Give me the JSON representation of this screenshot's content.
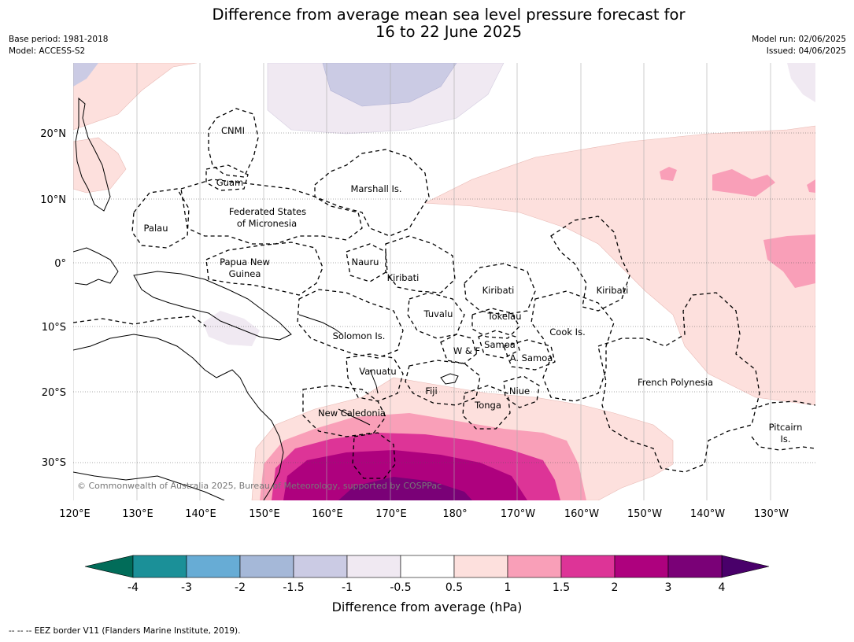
{
  "title": {
    "line1": "Difference from average mean sea level pressure forecast for",
    "line2": "16 to 22 June 2025"
  },
  "meta_left": {
    "base_period": "Base period: 1981-2018",
    "model": "Model: ACCESS-S2"
  },
  "meta_right": {
    "model_run": "Model run: 02/06/2025",
    "issued": "Issued: 04/06/2025"
  },
  "map": {
    "lat_labels": [
      "20°N",
      "10°N",
      "0°",
      "10°S",
      "20°S",
      "30°S"
    ],
    "lon_labels": [
      "120°E",
      "130°E",
      "140°E",
      "150°E",
      "160°E",
      "170°E",
      "180°",
      "170°W",
      "160°W",
      "150°W",
      "140°W",
      "130°W"
    ],
    "regions": [
      "CNMI",
      "Guam",
      "Marshall Is.",
      "Federated States",
      "of Micronesia",
      "Palau",
      "Papua New",
      "Guinea",
      "Nauru",
      "Kiribati",
      "Kiribati",
      "Kiribati",
      "Tuvalu",
      "Tokelau",
      "Cook Is.",
      "Solomon Is.",
      "Samoa",
      "W & F",
      "A. Samoa",
      "Vanuatu",
      "Fiji",
      "Niue",
      "Tonga",
      "French Polynesia",
      "New Caledonia",
      "Pitcairn",
      "Is."
    ],
    "copyright": "© Commonwealth of Australia 2025, Bureau of Meteorology, supported by COSPPac"
  },
  "colorbar": {
    "ticks": [
      "-4",
      "-3",
      "-2",
      "-1.5",
      "-1",
      "-0.5",
      "0.5",
      "1",
      "1.5",
      "2",
      "3",
      "4"
    ],
    "colors": [
      "#1b9098",
      "#67acd5",
      "#a5b8d8",
      "#cbcbe4",
      "#f0e9f2",
      "#ffffff",
      "#fde0dd",
      "#f99fb8",
      "#dd3497",
      "#ae017e",
      "#7a0177"
    ],
    "min_extend_color": "#016c59",
    "max_extend_color": "#49006a",
    "title": "Difference from average (hPa)"
  },
  "footnote": "--  --  -- EEZ border V11 (Flanders Marine Institute, 2019)."
}
